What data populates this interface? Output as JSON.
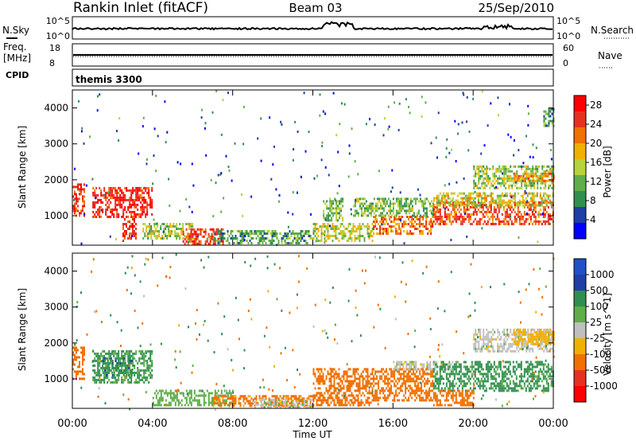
{
  "header": {
    "station": "Rankin Inlet (fitACF)",
    "beam": "Beam 03",
    "date": "25/Sep/2010"
  },
  "top_panels": {
    "nsky_label": "N.Sky",
    "nsearch_label": "N.Search",
    "nsky_ticks": [
      "10^5",
      "10^0"
    ],
    "nsearch_ticks": [
      "10^5",
      "10^0"
    ],
    "freq_label_1": "Freq.",
    "freq_label_2": "[MHz]",
    "freq_ticks": [
      "18",
      "8"
    ],
    "nave_label": "Nave",
    "nave_ticks": [
      "60",
      "0"
    ],
    "cpid_label": "CPID",
    "cpid_value": "themis 3300"
  },
  "colors": {
    "power_scale": [
      "#0000ff",
      "#1e3fa5",
      "#2f8f4e",
      "#5fae4a",
      "#b8d23a",
      "#f0b000",
      "#f07000",
      "#e83020",
      "#ff0000"
    ],
    "velocity_scale": [
      "#2050c8",
      "#1e3fa5",
      "#2f8f4e",
      "#5fae4a",
      "#bfbfbf",
      "#f0b000",
      "#f07000",
      "#e83020",
      "#ff0000"
    ]
  },
  "chart_data": [
    {
      "type": "heatmap",
      "quantity": "power",
      "ylabel": "Slant Range [km]",
      "xlabel": "Time UT",
      "xticks": [
        "00:00",
        "04:00",
        "08:00",
        "12:00",
        "16:00",
        "20:00",
        "00:00"
      ],
      "yticks": [
        "1000",
        "2000",
        "3000",
        "4000"
      ],
      "ylim": [
        180,
        4500
      ],
      "colorbar_label": "Power [dB]",
      "colorbar_ticks": [
        "4",
        "8",
        "12",
        "16",
        "20",
        "24",
        "28"
      ],
      "colorbar_range": [
        0,
        30
      ],
      "regions": [
        {
          "t": [
            0.0,
            0.6
          ],
          "r": [
            1000,
            1900
          ],
          "v": 25
        },
        {
          "t": [
            1.0,
            4.0
          ],
          "r": [
            1000,
            1800
          ],
          "v": 27
        },
        {
          "t": [
            2.5,
            3.2
          ],
          "r": [
            300,
            1000
          ],
          "v": 26
        },
        {
          "t": [
            3.5,
            6.0
          ],
          "r": [
            400,
            800
          ],
          "v": 14
        },
        {
          "t": [
            5.5,
            7.5
          ],
          "r": [
            250,
            650
          ],
          "v": 25
        },
        {
          "t": [
            7.0,
            12.0
          ],
          "r": [
            250,
            600
          ],
          "v": 10
        },
        {
          "t": [
            12.0,
            15.0
          ],
          "r": [
            300,
            800
          ],
          "v": 15
        },
        {
          "t": [
            12.5,
            13.5
          ],
          "r": [
            900,
            1500
          ],
          "v": 12
        },
        {
          "t": [
            15.0,
            18.0
          ],
          "r": [
            500,
            1000
          ],
          "v": 22
        },
        {
          "t": [
            14.0,
            18.0
          ],
          "r": [
            1000,
            1500
          ],
          "v": 12
        },
        {
          "t": [
            18.0,
            24.0
          ],
          "r": [
            750,
            1400
          ],
          "v": 24
        },
        {
          "t": [
            18.0,
            24.0
          ],
          "r": [
            1300,
            1650
          ],
          "v": 16
        },
        {
          "t": [
            20.0,
            24.0
          ],
          "r": [
            1800,
            2400
          ],
          "v": 14
        },
        {
          "t": [
            22.0,
            24.0
          ],
          "r": [
            2000,
            2200
          ],
          "v": 22
        },
        {
          "t": [
            23.5,
            24.0
          ],
          "r": [
            3500,
            4000
          ],
          "v": 10
        }
      ]
    },
    {
      "type": "heatmap",
      "quantity": "velocity",
      "ylabel": "Slant Range [km]",
      "xlabel": "Time UT",
      "xticks": [
        "00:00",
        "04:00",
        "08:00",
        "12:00",
        "16:00",
        "20:00",
        "00:00"
      ],
      "yticks": [
        "1000",
        "2000",
        "3000",
        "4000"
      ],
      "ylim": [
        180,
        4500
      ],
      "colorbar_label": "Velocity [m s^-1]",
      "colorbar_ticks": [
        "1000",
        "500",
        "100",
        "25",
        "-25",
        "-100",
        "-500",
        "-1000"
      ],
      "regions": [
        {
          "t": [
            0.0,
            0.6
          ],
          "r": [
            1000,
            1900
          ],
          "v": -200
        },
        {
          "t": [
            1.0,
            4.0
          ],
          "r": [
            900,
            1800
          ],
          "v": 120
        },
        {
          "t": [
            1.5,
            3.0
          ],
          "r": [
            1100,
            1600
          ],
          "v": 400
        },
        {
          "t": [
            4.0,
            8.0
          ],
          "r": [
            300,
            700
          ],
          "v": 60
        },
        {
          "t": [
            7.0,
            12.0
          ],
          "r": [
            250,
            550
          ],
          "v": -150
        },
        {
          "t": [
            9.0,
            12.0
          ],
          "r": [
            250,
            450
          ],
          "v": 10
        },
        {
          "t": [
            12.0,
            15.0
          ],
          "r": [
            300,
            1300
          ],
          "v": -200
        },
        {
          "t": [
            15.0,
            18.0
          ],
          "r": [
            400,
            1300
          ],
          "v": -250
        },
        {
          "t": [
            16.0,
            19.0
          ],
          "r": [
            1250,
            1500
          ],
          "v": 0
        },
        {
          "t": [
            18.0,
            24.0
          ],
          "r": [
            700,
            1500
          ],
          "v": 150
        },
        {
          "t": [
            18.0,
            20.0
          ],
          "r": [
            300,
            700
          ],
          "v": -250
        },
        {
          "t": [
            20.0,
            24.0
          ],
          "r": [
            1800,
            2400
          ],
          "v": 0
        },
        {
          "t": [
            22.0,
            24.0
          ],
          "r": [
            2000,
            2400
          ],
          "v": -60
        }
      ]
    }
  ]
}
